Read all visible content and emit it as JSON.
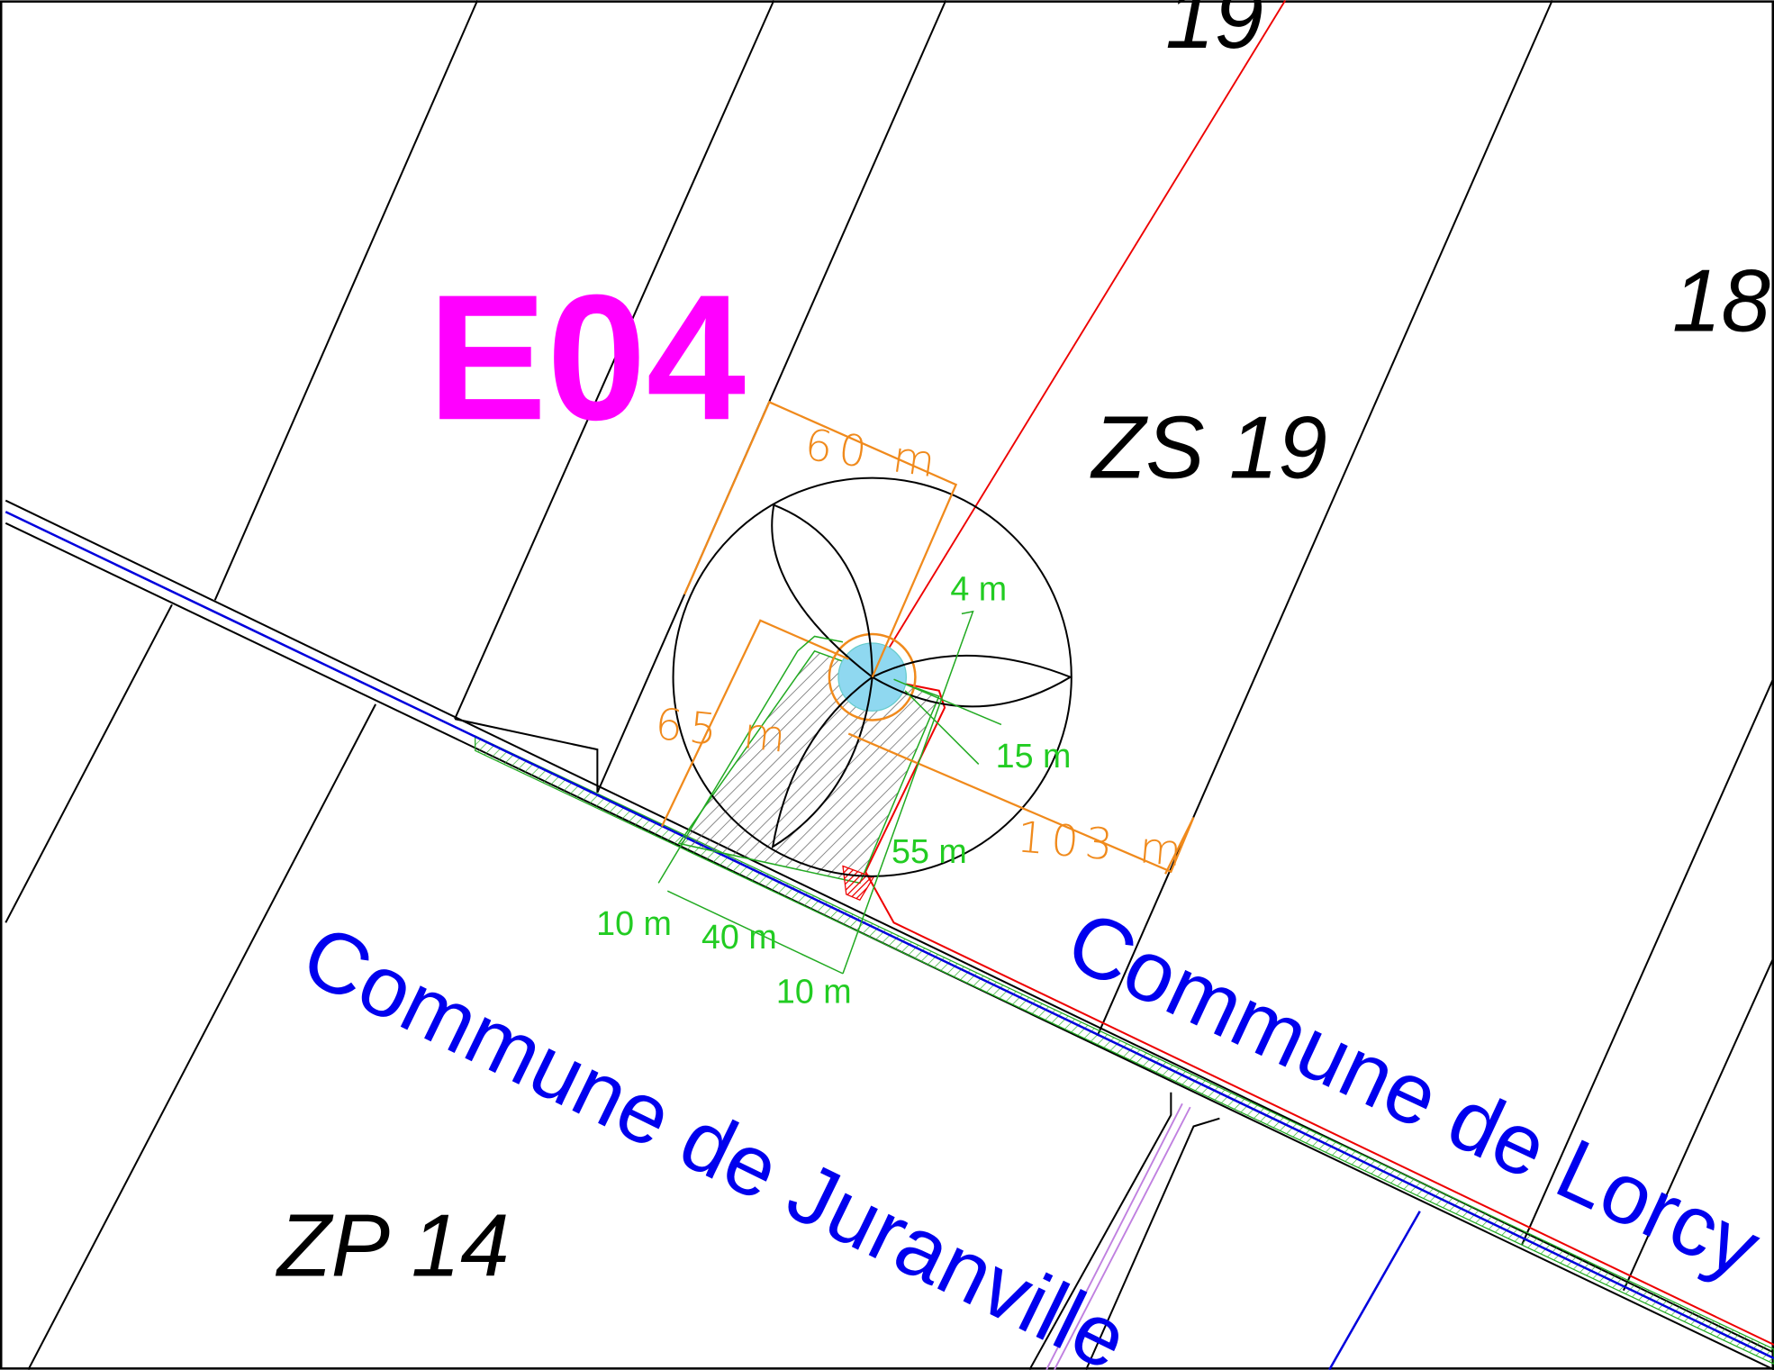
{
  "parcels": [
    "19",
    "18",
    "ZS 19",
    "ZP 14"
  ],
  "turbine": "E04",
  "dimensions": {
    "orange": [
      "60 m",
      "65 m",
      "103 m"
    ],
    "green": [
      "4 m",
      "15 m",
      "55 m",
      "10 m",
      "40 m",
      "10 m"
    ]
  },
  "communes": [
    "Commune de Juranville",
    "Commune de Lorcy"
  ]
}
